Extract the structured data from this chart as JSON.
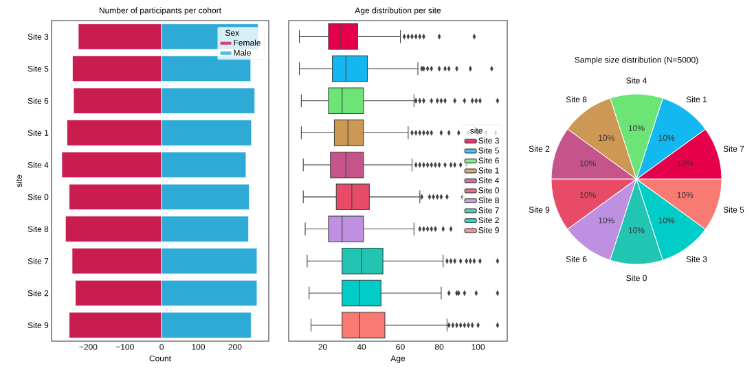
{
  "chart_data": [
    {
      "type": "bar",
      "orientation": "horizontal",
      "stacked": true,
      "title": "Number of participants per cohort",
      "xlabel": "Count",
      "ylabel": "site",
      "categories": [
        "Site 3",
        "Site 5",
        "Site 6",
        "Site 1",
        "Site 4",
        "Site 0",
        "Site 8",
        "Site 7",
        "Site 2",
        "Site 9"
      ],
      "series": [
        {
          "name": "Female",
          "color": "#c91d4f",
          "values": [
            -227,
            -243,
            -240,
            -258,
            -272,
            -252,
            -262,
            -244,
            -235,
            -252
          ]
        },
        {
          "name": "Male",
          "color": "#2eaad7",
          "values": [
            263,
            243,
            254,
            245,
            230,
            239,
            237,
            260,
            260,
            244
          ]
        }
      ],
      "xlim": [
        -300,
        292
      ],
      "xticks": [
        {
          "value": -200,
          "label": "−200"
        },
        {
          "value": -100,
          "label": "−100"
        },
        0,
        100,
        200
      ],
      "legend": "top right",
      "legend_title": "Sex"
    },
    {
      "type": "box",
      "orientation": "horizontal",
      "title": "Age distribution per site",
      "xlabel": "Age",
      "categories": [
        null,
        null,
        null,
        null,
        null,
        null,
        null,
        null,
        null,
        null
      ],
      "series": [
        {
          "name": "Site 3",
          "color": "#e6004c",
          "boxes": [
            {
              "low": 8,
              "q1": 23,
              "median": 29,
              "q3": 38,
              "high": 60,
              "outliers": [
                62,
                64,
                66,
                68,
                70,
                72,
                80,
                98
              ]
            },
            null,
            null,
            null,
            null,
            null,
            null,
            null,
            null,
            null
          ]
        },
        {
          "name": "Site 5",
          "color": "#14b8f0",
          "boxes": [
            null,
            {
              "low": 8,
              "q1": 25,
              "median": 32,
              "q3": 43,
              "high": 69,
              "outliers": [
                71,
                72,
                74,
                76,
                80,
                83,
                85,
                89,
                96,
                107
              ]
            },
            null,
            null,
            null,
            null,
            null,
            null,
            null,
            null
          ]
        },
        {
          "name": "Site 6",
          "color": "#6de576",
          "boxes": [
            null,
            null,
            {
              "low": 9,
              "q1": 23,
              "median": 30,
              "q3": 41,
              "high": 67,
              "outliers": [
                68,
                70,
                72,
                76,
                79,
                81,
                83,
                88,
                93,
                97,
                99,
                101,
                110
              ]
            },
            null,
            null,
            null,
            null,
            null,
            null,
            null
          ]
        },
        {
          "name": "Site 1",
          "color": "#cc9854",
          "boxes": [
            null,
            null,
            null,
            {
              "low": 9,
              "q1": 26,
              "median": 33,
              "q3": 41,
              "high": 64,
              "outliers": [
                66,
                68,
                70,
                72,
                74,
                76,
                81,
                85,
                90,
                95,
                100,
                104,
                109
              ]
            },
            null,
            null,
            null,
            null,
            null,
            null
          ]
        },
        {
          "name": "Site 4",
          "color": "#c4548a",
          "boxes": [
            null,
            null,
            null,
            null,
            {
              "low": 10,
              "q1": 24,
              "median": 32,
              "q3": 41,
              "high": 66,
              "outliers": [
                68,
                70,
                72,
                74,
                76,
                78,
                80,
                83,
                86,
                88,
                91,
                94
              ]
            },
            null,
            null,
            null,
            null,
            null
          ]
        },
        {
          "name": "Site 0",
          "color": "#e84b65",
          "boxes": [
            null,
            null,
            null,
            null,
            null,
            {
              "low": 10,
              "q1": 27,
              "median": 35,
              "q3": 44,
              "high": 70,
              "outliers": [
                71,
                75,
                77,
                79,
                81,
                84,
                92,
                103
              ]
            },
            null,
            null,
            null,
            null
          ]
        },
        {
          "name": "Site 8",
          "color": "#bf8fe2",
          "boxes": [
            null,
            null,
            null,
            null,
            null,
            null,
            {
              "low": 11,
              "q1": 23,
              "median": 30,
              "q3": 41,
              "high": 67,
              "outliers": [
                70,
                72,
                74,
                76,
                78,
                82,
                86,
                97
              ]
            },
            null,
            null,
            null
          ]
        },
        {
          "name": "Site 7",
          "color": "#22c4b2",
          "boxes": [
            null,
            null,
            null,
            null,
            null,
            null,
            null,
            {
              "low": 12,
              "q1": 30,
              "median": 40,
              "q3": 51,
              "high": 82,
              "outliers": [
                84,
                86,
                88,
                91,
                94,
                96,
                98,
                101,
                110
              ]
            },
            null,
            null
          ]
        },
        {
          "name": "Site 2",
          "color": "#00ccc8",
          "boxes": [
            null,
            null,
            null,
            null,
            null,
            null,
            null,
            null,
            {
              "low": 13,
              "q1": 30,
              "median": 39,
              "q3": 50,
              "high": 81,
              "outliers": [
                85,
                89,
                90,
                93,
                99,
                110
              ]
            },
            null
          ]
        },
        {
          "name": "Site 9",
          "color": "#f87a72",
          "boxes": [
            null,
            null,
            null,
            null,
            null,
            null,
            null,
            null,
            null,
            {
              "low": 14,
              "q1": 30,
              "median": 39,
              "q3": 52,
              "high": 84,
              "outliers": [
                85,
                87,
                89,
                91,
                93,
                95,
                97,
                100,
                110
              ]
            }
          ]
        }
      ],
      "marker": "diamond",
      "xlim": [
        2.5,
        115
      ],
      "xticks": [
        20,
        40,
        60,
        80,
        100
      ],
      "legend": "right",
      "legend_title": "site"
    },
    {
      "type": "pie",
      "title": "Sample size distribution (N=5000)",
      "categories": [
        "Site 7",
        "Site 1",
        "Site 4",
        "Site 8",
        "Site 2",
        "Site 9",
        "Site 6",
        "Site 0",
        "Site 3",
        "Site 5"
      ],
      "values": [
        10,
        10,
        10,
        10,
        10,
        10,
        10,
        10,
        10,
        10
      ],
      "value_labels": [
        "10%",
        "10%",
        "10%",
        "10%",
        "10%",
        "10%",
        "10%",
        "10%",
        "10%",
        "10%"
      ],
      "colors": [
        "#e6004c",
        "#14b8f0",
        "#6de576",
        "#cc9854",
        "#c4548a",
        "#e84b65",
        "#bf8fe2",
        "#22c4b2",
        "#00ccc8",
        "#f87a72"
      ]
    }
  ]
}
